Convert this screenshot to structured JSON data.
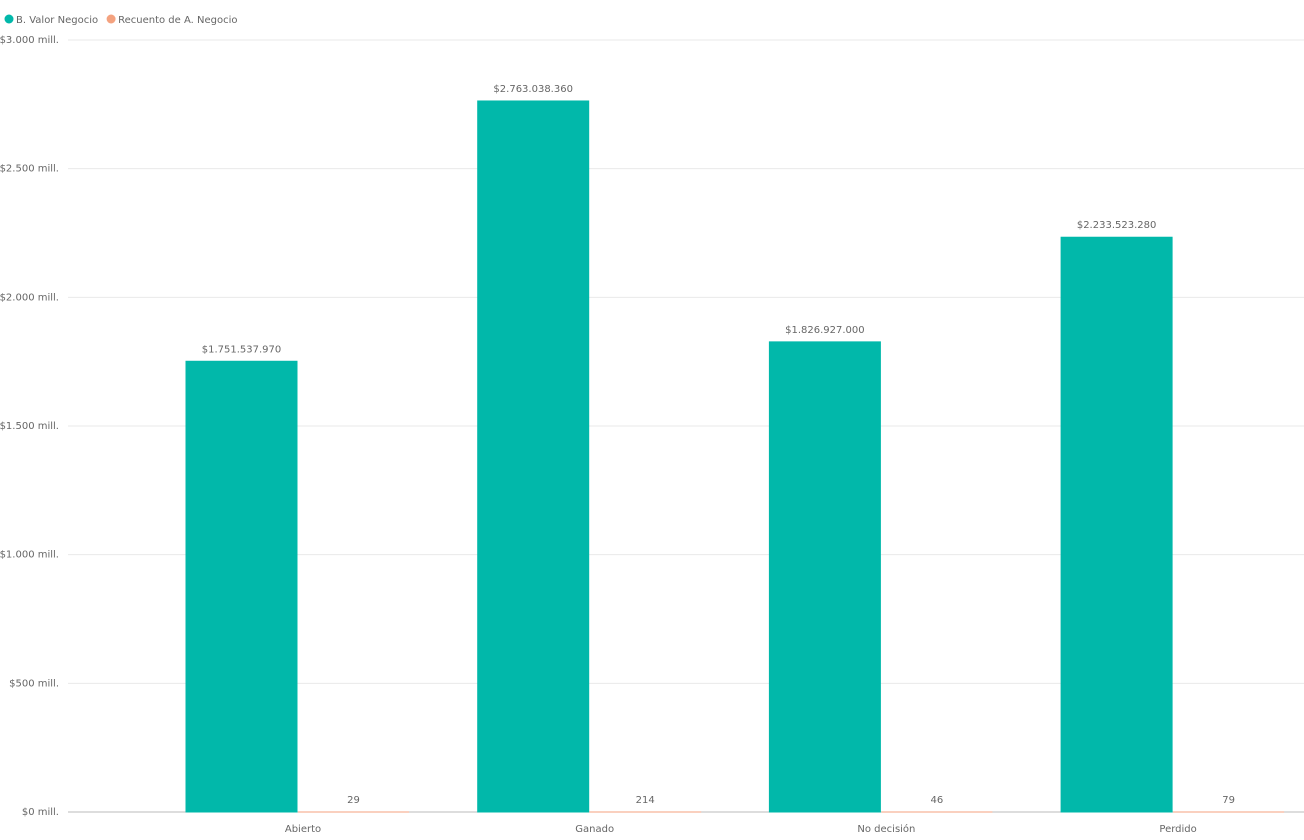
{
  "chart_data": {
    "type": "bar",
    "categories": [
      "Abierto",
      "Ganado",
      "No decisión",
      "Perdido"
    ],
    "series": [
      {
        "name": "B. Valor Negocio",
        "color": "#01b8aa",
        "values": [
          1751537970,
          2763038360,
          1826927000,
          2233523280
        ],
        "value_labels": [
          "$1.751.537.970",
          "$2.763.038.360",
          "$1.826.927.000",
          "$2.233.523.280"
        ]
      },
      {
        "name": "Recuento de A. Negocio",
        "color": "#f4a27f",
        "values": [
          29,
          214,
          46,
          79
        ]
      }
    ],
    "ylim": [
      0,
      3000000000
    ],
    "yticks": [
      {
        "value": 0,
        "label": "$0 mill."
      },
      {
        "value": 500000000,
        "label": "$500 mill."
      },
      {
        "value": 1000000000,
        "label": "$1.000 mill."
      },
      {
        "value": 1500000000,
        "label": "$1.500 mill."
      },
      {
        "value": 2000000000,
        "label": "$2.000 mill."
      },
      {
        "value": 2500000000,
        "label": "$2.500 mill."
      },
      {
        "value": 3000000000,
        "label": "$3.000 mill."
      }
    ],
    "grid": true,
    "legend": "top-left"
  }
}
